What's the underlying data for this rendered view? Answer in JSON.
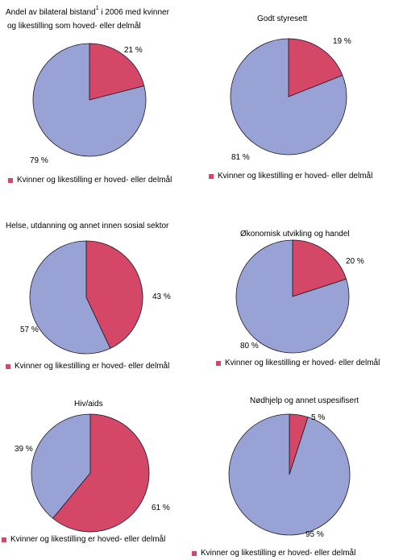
{
  "colors": {
    "focus": "#d44766",
    "other": "#98a2d4"
  },
  "chart_data": [
    {
      "type": "pie",
      "title_line1": "Andel av bilateral bistand",
      "title_sup": "1",
      "title_line1_rest": " i 2006 med kvinner",
      "title_line2": "og likestilling som hoved- eller delmål",
      "slices": [
        {
          "label": "21 %",
          "value": 21,
          "color": "#d44766"
        },
        {
          "label": "79 %",
          "value": 79,
          "color": "#98a2d4"
        }
      ],
      "legend": "Kvinner og likestilling er hoved- eller delmål"
    },
    {
      "type": "pie",
      "title": "Godt styresett",
      "slices": [
        {
          "label": "19 %",
          "value": 19,
          "color": "#d44766"
        },
        {
          "label": "81 %",
          "value": 81,
          "color": "#98a2d4"
        }
      ],
      "legend": "Kvinner og likestilling er hoved- eller delmål"
    },
    {
      "type": "pie",
      "title": "Helse, utdanning og annet innen sosial sektor",
      "slices": [
        {
          "label": "43 %",
          "value": 43,
          "color": "#d44766"
        },
        {
          "label": "57 %",
          "value": 57,
          "color": "#98a2d4"
        }
      ],
      "legend": "Kvinner og likestilling er hoved- eller delmål"
    },
    {
      "type": "pie",
      "title": "Økonomisk utvikling og handel",
      "slices": [
        {
          "label": "20 %",
          "value": 20,
          "color": "#d44766"
        },
        {
          "label": "80 %",
          "value": 80,
          "color": "#98a2d4"
        }
      ],
      "legend": "Kvinner og likestilling er hoved- eller delmål"
    },
    {
      "type": "pie",
      "title": "Hiv/aids",
      "slices": [
        {
          "label": "61 %",
          "value": 61,
          "color": "#d44766"
        },
        {
          "label": "39 %",
          "value": 39,
          "color": "#98a2d4"
        }
      ],
      "legend": "Kvinner og likestilling er hoved- eller delmål"
    },
    {
      "type": "pie",
      "title": "Nødhjelp og annet uspesifisert",
      "slices": [
        {
          "label": "5 %",
          "value": 5,
          "color": "#d44766"
        },
        {
          "label": "95 %",
          "value": 95,
          "color": "#98a2d4"
        }
      ],
      "legend": "Kvinner og likestilling er hoved- eller delmål"
    }
  ]
}
